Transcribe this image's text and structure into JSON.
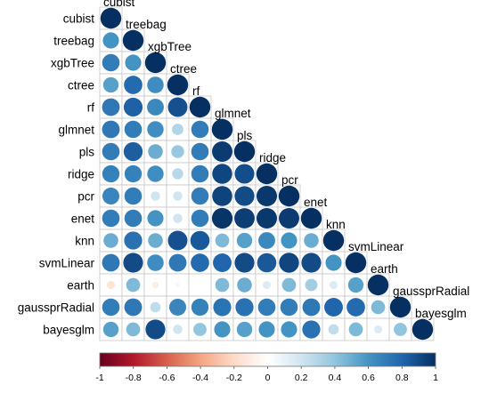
{
  "chart_data": {
    "type": "heatmap",
    "layout": "lower-triangle correlation plot (circles)",
    "variables": [
      "cubist",
      "treebag",
      "xgbTree",
      "ctree",
      "rf",
      "glmnet",
      "pls",
      "ridge",
      "pcr",
      "enet",
      "knn",
      "svmLinear",
      "earth",
      "gaussprRadial",
      "bayesglm"
    ],
    "correlations": [
      [
        1
      ],
      [
        0.6,
        1
      ],
      [
        0.7,
        0.6,
        1
      ],
      [
        0.55,
        0.78,
        0.63,
        1
      ],
      [
        0.72,
        0.82,
        0.65,
        0.88,
        1
      ],
      [
        0.72,
        0.7,
        0.62,
        0.3,
        0.7,
        1
      ],
      [
        0.7,
        0.83,
        0.5,
        0.38,
        0.7,
        0.96,
        1
      ],
      [
        0.68,
        0.68,
        0.62,
        0.28,
        0.7,
        0.92,
        0.89,
        1
      ],
      [
        0.66,
        0.7,
        0.2,
        0.2,
        0.7,
        0.93,
        0.9,
        0.97,
        1
      ],
      [
        0.7,
        0.7,
        0.6,
        0.2,
        0.7,
        0.98,
        0.95,
        0.97,
        0.96,
        1
      ],
      [
        0.5,
        0.75,
        0.5,
        0.88,
        0.85,
        0.45,
        0.55,
        0.65,
        0.6,
        0.5,
        1
      ],
      [
        0.72,
        0.9,
        0.63,
        0.72,
        0.78,
        0.8,
        0.9,
        0.85,
        0.92,
        0.9,
        0.6,
        1
      ],
      [
        -0.15,
        0.45,
        -0.1,
        -0.05,
        0.02,
        0.45,
        0.5,
        0.15,
        0.45,
        0.35,
        0.15,
        0.55,
        1
      ],
      [
        0.7,
        0.72,
        0.25,
        0.66,
        0.68,
        0.74,
        0.75,
        0.7,
        0.7,
        0.72,
        0.8,
        0.78,
        0.45,
        1
      ],
      [
        0.55,
        0.45,
        0.9,
        0.2,
        0.4,
        0.6,
        0.55,
        0.6,
        0.6,
        0.75,
        0.25,
        0.45,
        0.15,
        0.4,
        1
      ]
    ],
    "colorbar": {
      "min": -1,
      "max": 1,
      "ticks": [
        "-1",
        "-0.8",
        "-0.6",
        "-0.4",
        "-0.2",
        "0",
        "0.2",
        "0.4",
        "0.6",
        "0.8",
        "1"
      ],
      "colors": [
        "#67001f",
        "#b2182b",
        "#d6604d",
        "#f4a582",
        "#fddbc7",
        "#ffffff",
        "#d1e5f0",
        "#92c5de",
        "#4393c3",
        "#2166ac",
        "#053061"
      ]
    }
  }
}
